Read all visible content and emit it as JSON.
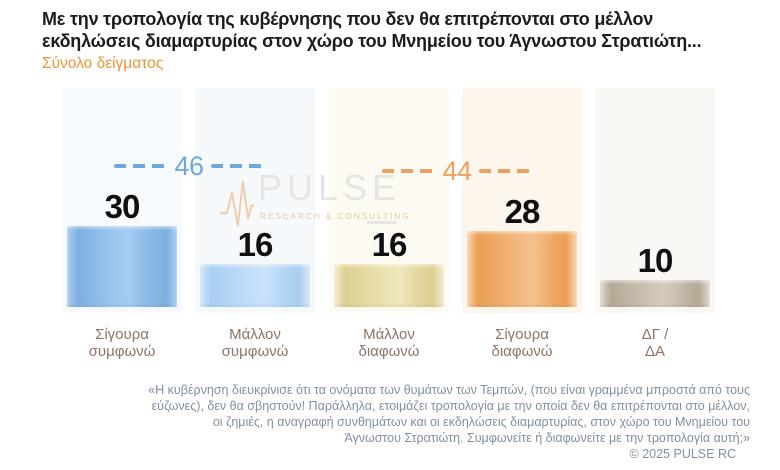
{
  "title": {
    "line1": "Με την τροπολογία της κυβέρνησης που δεν θα επιτρέπονται στο μέλλον",
    "line2": "εκδηλώσεις διαμαρτυρίας στον χώρο του Μνημείου του Άγνωστου Στρατιώτη..."
  },
  "subtitle": "Σύνολο δείγματος",
  "watermark": {
    "brand": "PULSE",
    "tagline": "RESEARCH & CONSULTING"
  },
  "chart_data": {
    "type": "bar",
    "categories": [
      "Σίγουρα συμφωνώ",
      "Μάλλον συμφωνώ",
      "Μάλλον διαφωνώ",
      "Σίγουρα διαφωνώ",
      "ΔΓ / ΔΑ"
    ],
    "categories_lines": [
      [
        "Σίγουρα",
        "συμφωνώ"
      ],
      [
        "Μάλλον",
        "συμφωνώ"
      ],
      [
        "Μάλλον",
        "διαφωνώ"
      ],
      [
        "Σίγουρα",
        "διαφωνώ"
      ],
      [
        "ΔΓ /",
        "ΔΑ"
      ]
    ],
    "values": [
      30,
      16,
      16,
      28,
      10
    ],
    "ylim": [
      0,
      83
    ],
    "grid": false,
    "legend": false,
    "bar_colors": [
      "#7cafe0",
      "#a8cef1",
      "#dcd08f",
      "#eb9e54",
      "#b5a896"
    ],
    "panel_colors": [
      "#f6fafd",
      "#f5f9fc",
      "#fdfaf2",
      "#fdf6ec",
      "#faf8f4"
    ],
    "annotations": [
      {
        "label": "46",
        "value": 46,
        "color": "#6fa8dc",
        "spans": [
          "Σίγουρα συμφωνώ",
          "Μάλλον συμφωνώ"
        ]
      },
      {
        "label": "44",
        "value": 44,
        "color": "#eda05f",
        "spans": [
          "Μάλλον διαφωνώ",
          "Σίγουρα διαφωνώ"
        ]
      }
    ]
  },
  "footnote": {
    "lines": [
      "«Η κυβέρνηση διευκρίνισε ότι τα ονόματα των θυμάτων των Τεμπών, (που είναι γραμμένα μπροστά από τους",
      "εύζωνες), δεν θα σβηστούν! Παράλληλα, ετοιμάζει τροπολογία με την οποία δεν θα επιτρέπονται στο μέλλον,",
      "οι ζημιές, η αναγραφή συνθημάτων και οι εκδηλώσεις διαμαρτυρίας, στον χώρο του Μνημείου του",
      "Άγνωστου Στρατιώτη. Συμφωνείτε ή διαφωνείτε με την τροπολογία αυτή;»"
    ]
  },
  "copyright": "© 2025 PULSE RC"
}
